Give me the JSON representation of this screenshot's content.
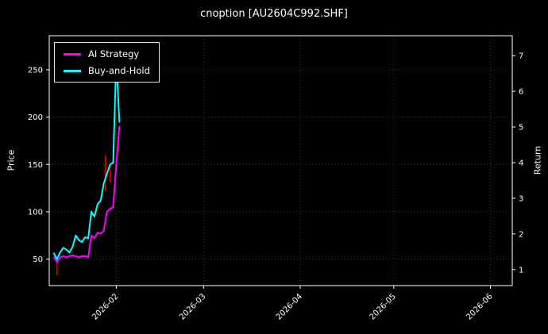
{
  "title": "cnoption [AU2604C992.SHF]",
  "chart_data": {
    "type": "line",
    "title": "cnoption [AU2604C992.SHF]",
    "ylabel_left": "Price",
    "ylabel_right": "Return",
    "background": "#000000",
    "text_color": "#ffffff",
    "grid": true,
    "grid_color": "#3c3c3c",
    "legend_position": "upper left",
    "x_unit": "days since 2026-01-01",
    "xlim": [
      9.5,
      158
    ],
    "x_ticks": [
      {
        "day": 31,
        "label": "2026-02"
      },
      {
        "day": 59,
        "label": "2026-03"
      },
      {
        "day": 90,
        "label": "2026-04"
      },
      {
        "day": 120,
        "label": "2026-05"
      },
      {
        "day": 151,
        "label": "2026-06"
      }
    ],
    "price_lim": [
      22,
      286
    ],
    "price_ticks": [
      50,
      100,
      150,
      200,
      250
    ],
    "return_lim": [
      0.55,
      7.56
    ],
    "return_ticks": [
      1,
      2,
      3,
      4,
      5,
      6,
      7
    ],
    "series": [
      {
        "name": "AI Strategy",
        "color": "#ff00ff",
        "axis": "price",
        "days": [
          11,
          12,
          13,
          14,
          15,
          16,
          17,
          18,
          19,
          20,
          21,
          22,
          23,
          24,
          25,
          26,
          27,
          28,
          29,
          30,
          31,
          32
        ],
        "values": [
          52,
          47,
          52,
          53,
          52,
          53,
          54,
          53,
          52,
          53,
          53,
          52,
          75,
          72,
          78,
          77,
          80,
          100,
          103,
          105,
          150,
          190
        ]
      },
      {
        "name": "Buy-and-Hold",
        "color": "#00ffff",
        "axis": "price",
        "days": [
          11,
          12,
          13,
          14,
          15,
          16,
          17,
          18,
          19,
          20,
          21,
          22,
          23,
          24,
          25,
          26,
          27,
          28,
          29,
          30,
          31,
          32
        ],
        "values": [
          56,
          50,
          57,
          62,
          60,
          57,
          63,
          75,
          70,
          68,
          73,
          72,
          100,
          95,
          108,
          112,
          130,
          140,
          150,
          152,
          262,
          195
        ]
      }
    ],
    "trade_markers": {
      "color": "#dd0000",
      "segments": [
        {
          "day": 12,
          "from": 33,
          "to": 48
        },
        {
          "day": 27.5,
          "from": 122,
          "to": 160
        },
        {
          "day": 29,
          "from": 131,
          "to": 150
        }
      ]
    }
  }
}
